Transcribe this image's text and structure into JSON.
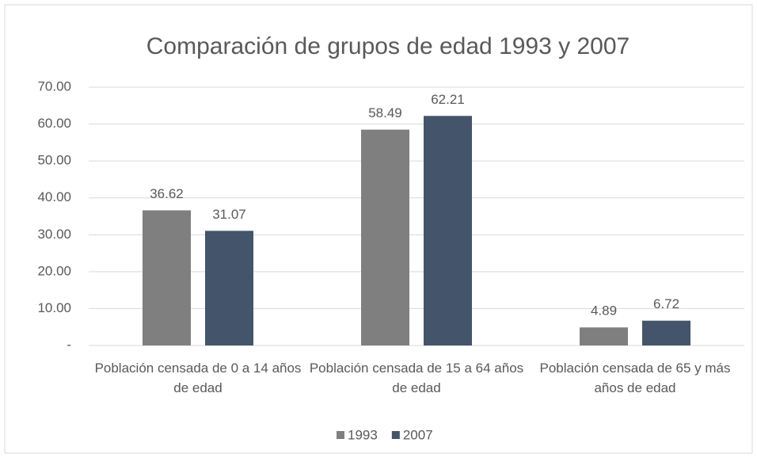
{
  "chart_data": {
    "type": "bar",
    "title": "Comparación de grupos de edad 1993 y 2007",
    "categories": [
      "Población censada de 0 a 14 años de edad",
      "Población censada de 15 a 64 años de edad",
      "Población censada de 65 y más años de edad"
    ],
    "series": [
      {
        "name": "1993",
        "color": "#7f7f7f",
        "values": [
          36.62,
          58.49,
          4.89
        ]
      },
      {
        "name": "2007",
        "color": "#44546a",
        "values": [
          31.07,
          62.21,
          6.72
        ]
      }
    ],
    "ylim": [
      0,
      70
    ],
    "yticks": [
      {
        "value": 0,
        "label": "-"
      },
      {
        "value": 10,
        "label": "10.00"
      },
      {
        "value": 20,
        "label": "20.00"
      },
      {
        "value": 30,
        "label": "30.00"
      },
      {
        "value": 40,
        "label": "40.00"
      },
      {
        "value": 50,
        "label": "50.00"
      },
      {
        "value": 60,
        "label": "60.00"
      },
      {
        "value": 70,
        "label": "70.00"
      }
    ],
    "grid": true,
    "legend": "bottom"
  }
}
